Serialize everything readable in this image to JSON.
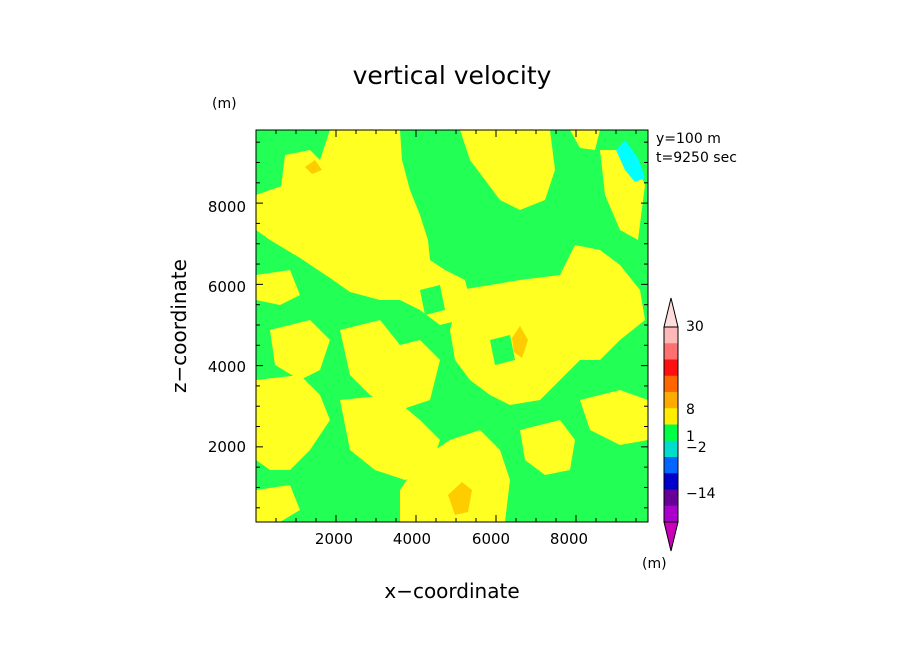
{
  "chart_data": {
    "type": "heatmap",
    "title": "vertical velocity",
    "xlabel": "x−coordinate",
    "ylabel": "z−coordinate",
    "x_unit": "(m)",
    "z_unit": "(m)",
    "xlim": [
      0,
      9800
    ],
    "zlim": [
      150,
      9800
    ],
    "x_ticks": [
      "2000",
      "4000",
      "6000",
      "8000"
    ],
    "z_ticks": [
      "2000",
      "4000",
      "6000",
      "8000"
    ],
    "annotations": [
      "y=100 m",
      "t=9250 sec"
    ],
    "colorbar": {
      "unit": "(m)",
      "labels": [
        "30",
        "8",
        "1",
        "−2",
        "−14"
      ],
      "colors": [
        "#ffb8b8",
        "#ff7070",
        "#ff1010",
        "#ff6600",
        "#ffaa00",
        "#ffee00",
        "#00ff44",
        "#00ddcc",
        "#0066ff",
        "#0000cc",
        "#660099",
        "#aa00cc"
      ],
      "extend_top_color": "#ffdddd",
      "extend_bottom_color": "#cc00bb"
    },
    "field_colors": {
      "positive_small": "#ffff22",
      "near_zero": "#22ff55",
      "orange_pockets": "#ffcc00",
      "negative_pocket": "#00ffff"
    }
  }
}
